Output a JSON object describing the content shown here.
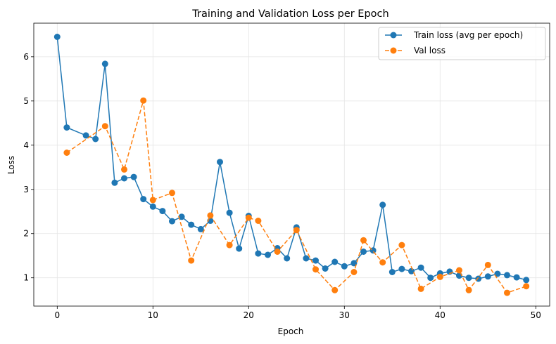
{
  "chart_data": {
    "type": "line",
    "title": "Training and Validation Loss per Epoch",
    "xlabel": "Epoch",
    "ylabel": "Loss",
    "xlim": [
      -2.45,
      51.45
    ],
    "ylim": [
      0.36,
      6.76
    ],
    "xticks": [
      0,
      10,
      20,
      30,
      40,
      50
    ],
    "yticks": [
      1,
      2,
      3,
      4,
      5,
      6
    ],
    "grid": true,
    "legend_position": "upper right",
    "series": [
      {
        "name": "Train loss (avg per epoch)",
        "color": "#1f77b4",
        "linestyle": "solid",
        "marker": "circle",
        "x": [
          0,
          1,
          3,
          4,
          5,
          6,
          7,
          8,
          9,
          10,
          11,
          12,
          13,
          14,
          15,
          16,
          17,
          18,
          19,
          20,
          21,
          22,
          23,
          24,
          25,
          26,
          27,
          28,
          29,
          30,
          31,
          32,
          33,
          34,
          35,
          36,
          37,
          38,
          39,
          40,
          41,
          42,
          43,
          44,
          45,
          46,
          47,
          48,
          49
        ],
        "values": [
          6.45,
          4.4,
          4.22,
          4.14,
          5.84,
          3.15,
          3.25,
          3.28,
          2.78,
          2.61,
          2.51,
          2.28,
          2.38,
          2.2,
          2.1,
          2.29,
          3.62,
          2.47,
          1.66,
          2.4,
          1.55,
          1.52,
          1.67,
          1.44,
          2.14,
          1.44,
          1.39,
          1.21,
          1.36,
          1.26,
          1.33,
          1.59,
          1.62,
          2.65,
          1.13,
          1.2,
          1.15,
          1.23,
          1.0,
          1.1,
          1.14,
          1.05,
          1.0,
          0.98,
          1.03,
          1.09,
          1.06,
          1.01,
          0.95
        ]
      },
      {
        "name": "Val loss",
        "color": "#ff7f0e",
        "linestyle": "dashed",
        "marker": "circle",
        "x": [
          1,
          5,
          7,
          9,
          10,
          12,
          14,
          16,
          18,
          20,
          21,
          23,
          25,
          27,
          29,
          31,
          32,
          34,
          36,
          38,
          40,
          42,
          43,
          45,
          47,
          49
        ],
        "values": [
          3.83,
          4.43,
          3.45,
          5.01,
          2.76,
          2.92,
          1.39,
          2.41,
          1.74,
          2.36,
          2.29,
          1.59,
          2.08,
          1.19,
          0.72,
          1.13,
          1.85,
          1.35,
          1.74,
          0.75,
          1.02,
          1.17,
          0.72,
          1.29,
          0.66,
          0.81
        ]
      }
    ]
  }
}
